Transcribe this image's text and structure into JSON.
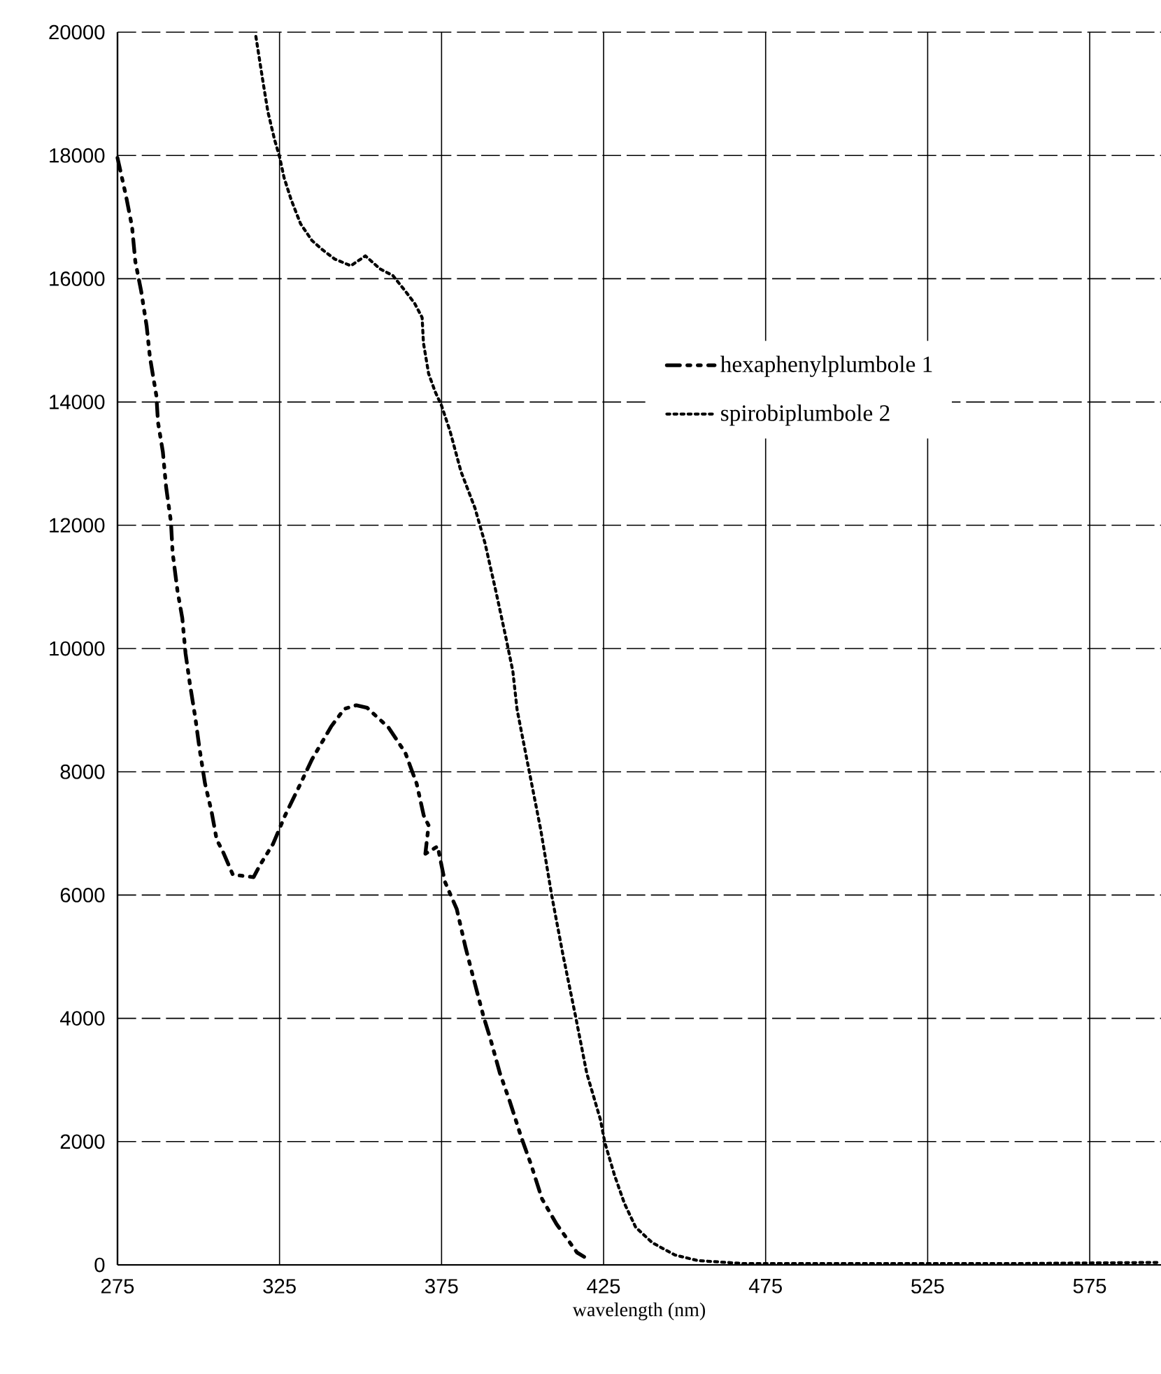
{
  "chart_data": {
    "type": "line",
    "xlabel": "wavelength (nm)",
    "xlim": [
      275,
      597
    ],
    "xticks": [
      275,
      325,
      375,
      425,
      475,
      525,
      575
    ],
    "ylim": [
      0,
      20000
    ],
    "yticks": [
      0,
      2000,
      4000,
      6000,
      8000,
      10000,
      12000,
      14000,
      16000,
      18000,
      20000
    ],
    "grid": true,
    "legend": "right",
    "series": [
      {
        "name": "hexaphenylplumbole 1",
        "color": "#000000",
        "line_style": "dashdot",
        "x": [
          275,
          277.6,
          279.5,
          280.5,
          282.3,
          284,
          285,
          287,
          287.5,
          289,
          290,
          291.5,
          292,
          293.5,
          295,
          296,
          297.3,
          299,
          300.3,
          302,
          304,
          305.6,
          307.4,
          310.6,
          317,
          319,
          323,
          326.7,
          331.5,
          335,
          341,
          345,
          348.7,
          352,
          358.6,
          363.8,
          367.3,
          369.5,
          371,
          370,
          373.8,
          376,
          379.7,
          382.4,
          384.6,
          388,
          390,
          393,
          396,
          399.6,
          402.6,
          406,
          410.5,
          414.6,
          416.8,
          419
        ],
        "values": [
          17960,
          17350,
          16840,
          16280,
          15800,
          15230,
          14730,
          14100,
          13670,
          13190,
          12620,
          12050,
          11560,
          10940,
          10490,
          9920,
          9440,
          8880,
          8380,
          7810,
          7360,
          6900,
          6720,
          6330,
          6290,
          6490,
          6830,
          7290,
          7810,
          8200,
          8740,
          9020,
          9080,
          9040,
          8720,
          8310,
          7810,
          7290,
          7130,
          6670,
          6790,
          6220,
          5770,
          5150,
          4700,
          4020,
          3680,
          3110,
          2660,
          2070,
          1630,
          1070,
          660,
          360,
          200,
          130
        ]
      },
      {
        "name": "spirobiplumbole 2",
        "color": "#000000",
        "line_style": "dotted",
        "x": [
          317.7,
          320,
          321.4,
          323.5,
          325,
          326.4,
          328.6,
          331.5,
          335,
          338,
          342,
          347,
          351.5,
          356,
          360,
          363.8,
          366.7,
          369,
          369.4,
          371,
          373,
          375,
          377.6,
          381,
          385.3,
          388.4,
          391.8,
          394.8,
          397,
          398.3,
          401.7,
          405.6,
          409,
          412.5,
          416.4,
          419.8,
          424,
          425.4,
          428.4,
          431.4,
          434.9,
          440,
          447,
          454,
          468.5,
          500,
          550,
          597
        ],
        "values": [
          19930,
          19160,
          18710,
          18250,
          17980,
          17640,
          17280,
          16890,
          16620,
          16480,
          16320,
          16210,
          16370,
          16160,
          16050,
          15800,
          15600,
          15370,
          14960,
          14460,
          14170,
          13940,
          13530,
          12870,
          12280,
          11710,
          10920,
          10190,
          9630,
          9010,
          8100,
          7060,
          5990,
          5020,
          4020,
          3110,
          2360,
          1980,
          1450,
          1000,
          610,
          360,
          160,
          70,
          20,
          20,
          20,
          40
        ]
      }
    ]
  }
}
